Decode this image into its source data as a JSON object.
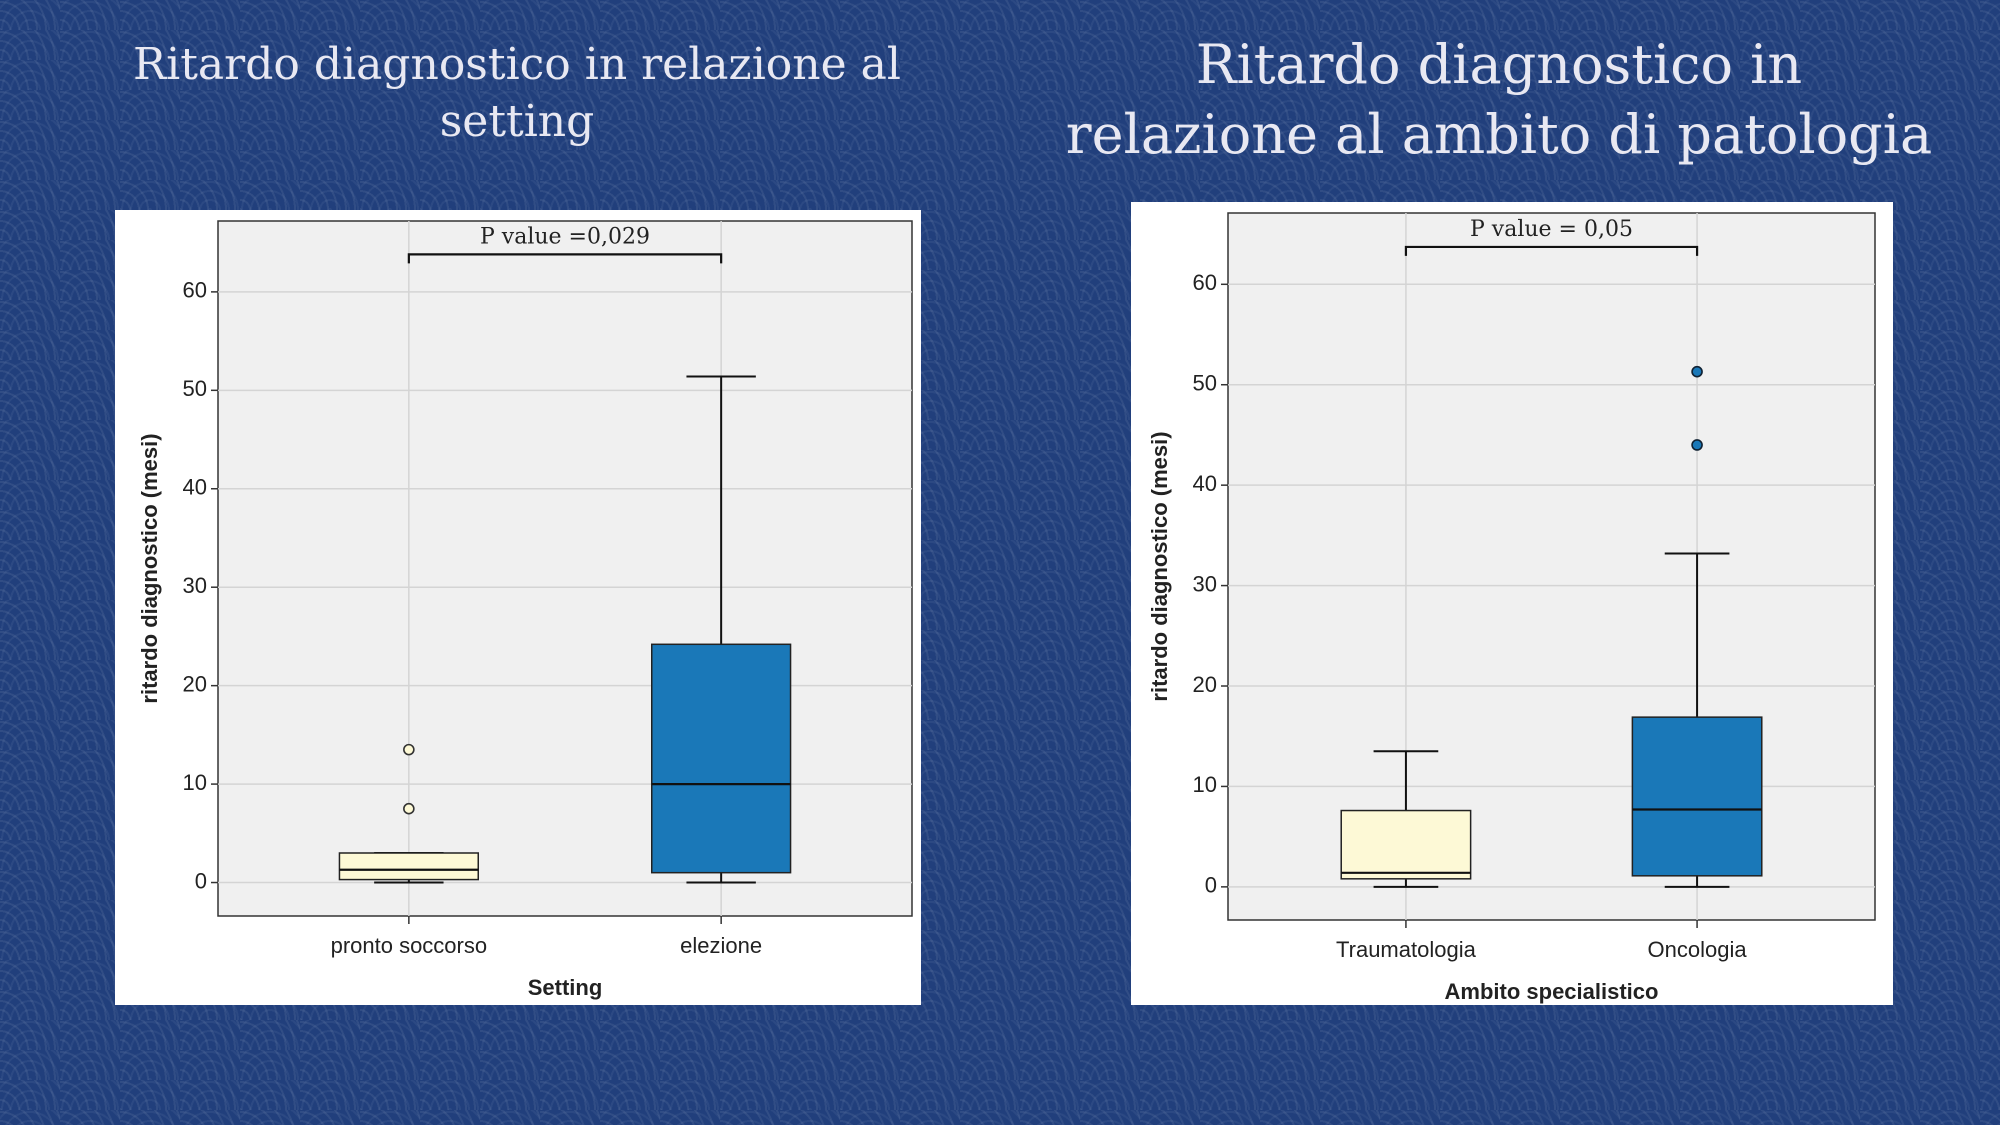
{
  "chart_data": [
    {
      "type": "box",
      "title": "Ritardo diagnostico in relazione al setting",
      "annotation": "P value =0,029",
      "x_label": "Setting",
      "y_label": "ritardo diagnostico (mesi)",
      "categories": [
        "pronto soccorso",
        "elezione"
      ],
      "boxes": [
        {
          "min": 0,
          "q1": 0.3,
          "median": 1.3,
          "q3": 3.0,
          "max": 3.0,
          "outliers": [
            7.5,
            13.5
          ],
          "color": "#fdf9d6"
        },
        {
          "min": 0,
          "q1": 1.0,
          "median": 10,
          "q3": 24.2,
          "max": 51.4,
          "outliers": [],
          "color": "#1a78b8"
        }
      ],
      "ylim": [
        -3.4,
        67.2
      ],
      "yticks": [
        0,
        10,
        20,
        30,
        40,
        50,
        60
      ],
      "grid": true
    },
    {
      "type": "box",
      "title": "Ritardo diagnostico in relazione al ambito di patologia",
      "annotation": "P value = 0,05",
      "x_label": "Ambito specialistico",
      "y_label": "ritardo diagnostico (mesi)",
      "categories": [
        "Traumatologia",
        "Oncologia"
      ],
      "boxes": [
        {
          "min": 0,
          "q1": 0.8,
          "median": 1.4,
          "q3": 7.6,
          "max": 13.5,
          "outliers": [],
          "color": "#fdf9d6"
        },
        {
          "min": 0,
          "q1": 1.1,
          "median": 7.7,
          "q3": 16.9,
          "max": 33.2,
          "outliers": [
            44,
            51.3
          ],
          "color": "#1a78b8"
        }
      ],
      "ylim": [
        -3.3,
        67.1
      ],
      "yticks": [
        0,
        10,
        20,
        30,
        40,
        50,
        60
      ],
      "grid": true
    }
  ]
}
